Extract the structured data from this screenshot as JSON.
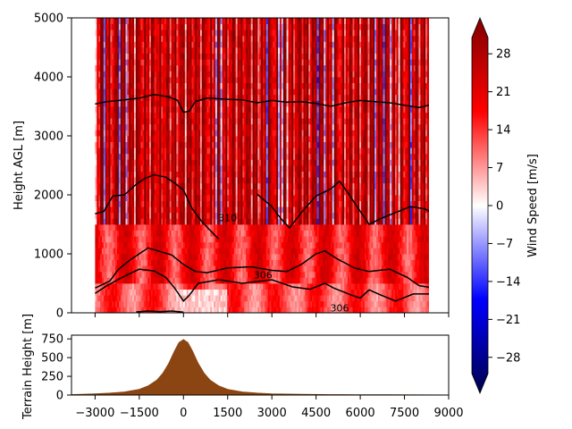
{
  "chart_data": [
    {
      "type": "heatmap",
      "ylabel": "Height AGL [m]",
      "xlim": [
        -3000,
        8500
      ],
      "ylim": [
        0,
        5000
      ],
      "y_ticks": [
        0,
        1000,
        2000,
        3000,
        4000,
        5000
      ],
      "x_ticks": [
        -3000,
        -1500,
        0,
        1500,
        3000,
        4500,
        6000,
        7500,
        9000
      ],
      "contours": [
        {
          "level": "",
          "points": [
            [
              -3000,
              3540
            ],
            [
              -2600,
              3580
            ],
            [
              -2000,
              3610
            ],
            [
              -1500,
              3640
            ],
            [
              -1000,
              3700
            ],
            [
              -500,
              3660
            ],
            [
              -200,
              3600
            ],
            [
              0,
              3400
            ],
            [
              200,
              3420
            ],
            [
              400,
              3580
            ],
            [
              800,
              3640
            ],
            [
              1500,
              3620
            ],
            [
              2000,
              3610
            ],
            [
              2500,
              3560
            ],
            [
              3000,
              3600
            ],
            [
              3500,
              3570
            ],
            [
              4000,
              3580
            ],
            [
              4500,
              3550
            ],
            [
              5000,
              3500
            ],
            [
              5500,
              3560
            ],
            [
              6000,
              3600
            ],
            [
              6500,
              3580
            ],
            [
              7000,
              3560
            ],
            [
              7500,
              3520
            ],
            [
              8000,
              3480
            ],
            [
              8500,
              3540
            ]
          ]
        },
        {
          "level": "310",
          "points": [
            [
              -3000,
              1680
            ],
            [
              -2700,
              1720
            ],
            [
              -2400,
              1980
            ],
            [
              -2000,
              2000
            ],
            [
              -1600,
              2180
            ],
            [
              -1300,
              2280
            ],
            [
              -1000,
              2340
            ],
            [
              -600,
              2300
            ],
            [
              -300,
              2200
            ],
            [
              0,
              2080
            ],
            [
              300,
              1760
            ],
            [
              600,
              1560
            ],
            [
              900,
              1400
            ],
            [
              1200,
              1250
            ]
          ]
        },
        {
          "level": "",
          "points": [
            [
              2500,
              2010
            ],
            [
              3000,
              1800
            ],
            [
              3300,
              1600
            ],
            [
              3600,
              1440
            ],
            [
              4000,
              1700
            ],
            [
              4500,
              1980
            ],
            [
              5000,
              2100
            ],
            [
              5300,
              2230
            ],
            [
              5600,
              2020
            ],
            [
              6000,
              1720
            ],
            [
              6300,
              1500
            ],
            [
              6700,
              1600
            ],
            [
              7200,
              1700
            ],
            [
              7700,
              1800
            ],
            [
              8200,
              1760
            ],
            [
              8500,
              1680
            ]
          ]
        },
        {
          "level": "",
          "points": [
            [
              -3000,
              420
            ],
            [
              -2500,
              540
            ],
            [
              -2200,
              740
            ],
            [
              -1800,
              900
            ],
            [
              -1200,
              1100
            ],
            [
              -800,
              1040
            ],
            [
              -400,
              980
            ],
            [
              0,
              820
            ],
            [
              400,
              700
            ],
            [
              800,
              680
            ],
            [
              1500,
              760
            ],
            [
              2300,
              780
            ],
            [
              3000,
              720
            ],
            [
              3500,
              700
            ],
            [
              4000,
              820
            ],
            [
              4500,
              1000
            ],
            [
              4800,
              1050
            ],
            [
              5200,
              920
            ],
            [
              5800,
              760
            ],
            [
              6300,
              700
            ],
            [
              7000,
              740
            ],
            [
              7600,
              600
            ],
            [
              8000,
              460
            ],
            [
              8500,
              420
            ]
          ]
        },
        {
          "level": "306",
          "points": [
            [
              -3000,
              330
            ],
            [
              -2600,
              460
            ],
            [
              -2000,
              620
            ],
            [
              -1500,
              740
            ],
            [
              -1000,
              710
            ],
            [
              -600,
              600
            ],
            [
              -300,
              420
            ],
            [
              0,
              200
            ],
            [
              200,
              300
            ],
            [
              500,
              500
            ],
            [
              1200,
              560
            ],
            [
              2000,
              500
            ],
            [
              3000,
              560
            ],
            [
              3700,
              440
            ],
            [
              4300,
              400
            ],
            [
              4800,
              500
            ],
            [
              5100,
              420
            ],
            [
              5400,
              360
            ],
            [
              5700,
              300
            ],
            [
              6000,
              250
            ],
            [
              6300,
              390
            ],
            [
              6700,
              300
            ],
            [
              7200,
              200
            ],
            [
              7800,
              320
            ],
            [
              8500,
              320
            ]
          ]
        },
        {
          "level": "306",
          "points": [
            [
              -1600,
              15
            ],
            [
              -1200,
              30
            ],
            [
              -800,
              20
            ],
            [
              -400,
              30
            ],
            [
              0,
              10
            ]
          ]
        }
      ],
      "contour_labels": [
        {
          "text": "310",
          "x": 1500,
          "y": 1550
        },
        {
          "text": "306",
          "x": 2700,
          "y": 580
        },
        {
          "text": "306",
          "x": 5300,
          "y": 20
        }
      ],
      "note_wind_pattern": "alternating strong positive (dark red) and negative (blue) vertical streaks above ~1500 m; stronger-than-average positive wind below 1500 m; light/white patches near ground at 0–1500 m"
    },
    {
      "type": "area",
      "ylabel": "Terrain Height [m]",
      "xlim": [
        -3000,
        8500
      ],
      "ylim": [
        0,
        800
      ],
      "y_ticks": [
        0,
        250,
        500,
        750
      ],
      "x_ticks": [
        -3000,
        -1500,
        0,
        1500,
        3000,
        4500,
        6000,
        7500,
        9000
      ],
      "series": [
        {
          "name": "",
          "x": [
            -3800,
            -3000,
            -2500,
            -2000,
            -1500,
            -1200,
            -900,
            -700,
            -500,
            -300,
            -150,
            0,
            150,
            300,
            500,
            700,
            900,
            1200,
            1500,
            2000,
            2500,
            3000,
            4000,
            5000,
            6000,
            7000,
            8000,
            9000
          ],
          "y": [
            5,
            15,
            25,
            40,
            75,
            120,
            200,
            290,
            420,
            590,
            700,
            740,
            700,
            590,
            420,
            290,
            200,
            120,
            75,
            40,
            25,
            15,
            8,
            5,
            3,
            2,
            1,
            0
          ]
        }
      ],
      "color": "#8b4513"
    },
    {
      "type": "colorbar",
      "label": "Wind Speed [m/s]",
      "range": [
        -31,
        31
      ],
      "ticks": [
        -28,
        -21,
        -14,
        -7,
        0,
        7,
        14,
        21,
        28
      ],
      "colormap": "seismic"
    }
  ]
}
